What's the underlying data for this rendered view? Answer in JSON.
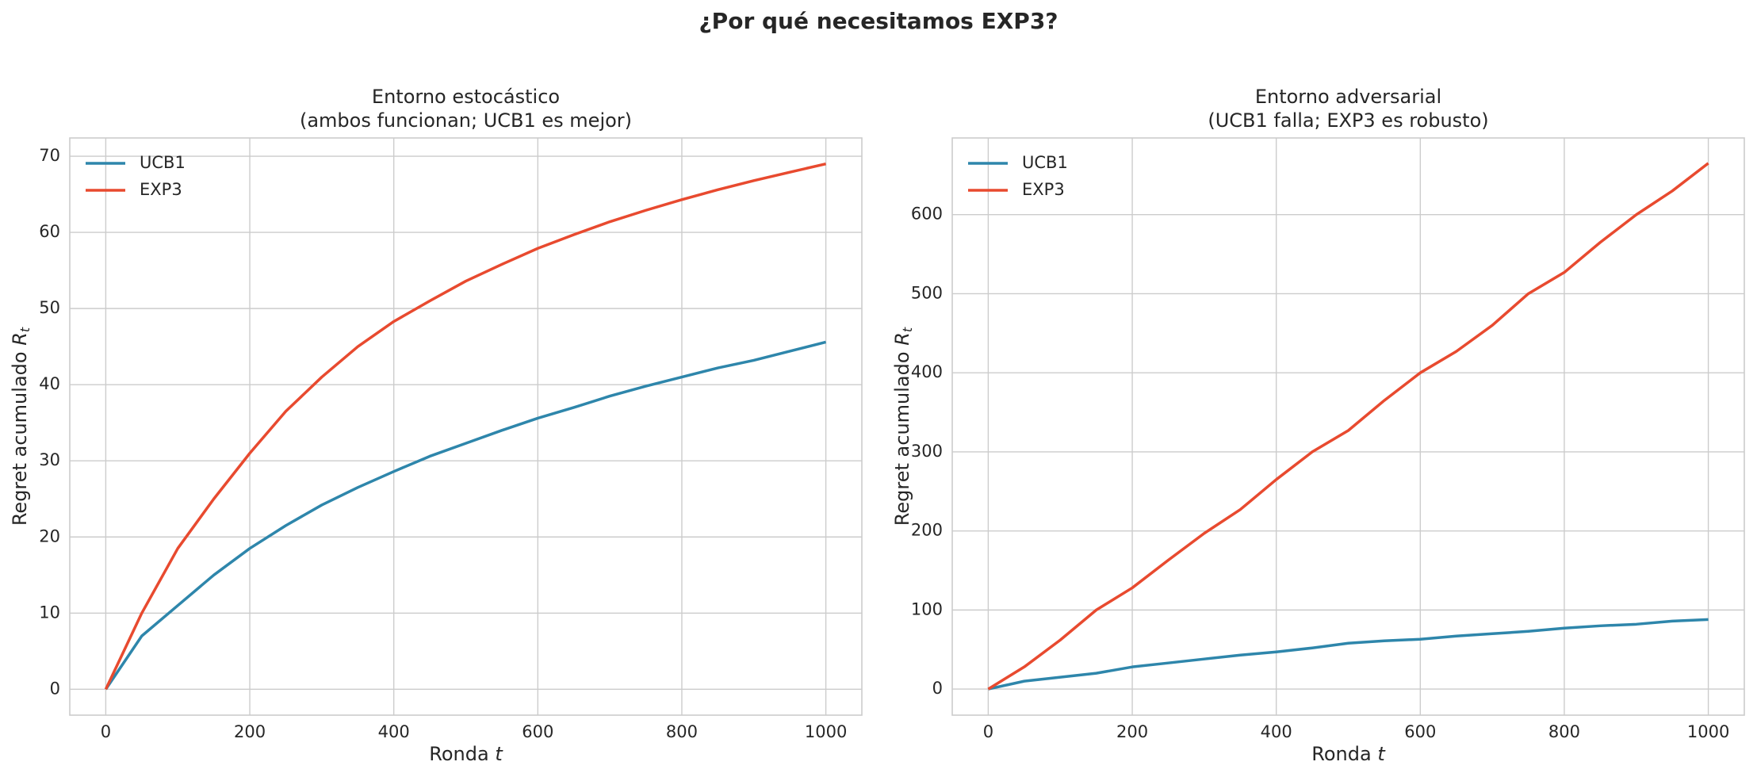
{
  "title": "¿Por qué necesitamos EXP3?",
  "chart_data": [
    {
      "type": "line",
      "title": [
        "Entorno estocástico",
        "(ambos funcionan; UCB1 es mejor)"
      ],
      "xlabel": "Ronda",
      "xlabel_var": "t",
      "ylabel": "Regret acumulado",
      "ylabel_var": "R",
      "ylabel_sub": "t",
      "x": [
        0,
        50,
        100,
        150,
        200,
        250,
        300,
        350,
        400,
        450,
        500,
        550,
        600,
        650,
        700,
        750,
        800,
        850,
        900,
        950,
        1000
      ],
      "series": [
        {
          "name": "UCB1",
          "color": "#2e86ab",
          "values": [
            0,
            7,
            11,
            15,
            18.5,
            21.5,
            24.2,
            26.5,
            28.6,
            30.6,
            32.3,
            34,
            35.6,
            37,
            38.5,
            39.8,
            41,
            42.2,
            43.2,
            44.4,
            45.6
          ]
        },
        {
          "name": "EXP3",
          "color": "#e84a2f",
          "values": [
            0,
            10,
            18.5,
            25,
            31,
            36.5,
            41,
            45,
            48.3,
            51,
            53.6,
            55.8,
            57.9,
            59.7,
            61.4,
            62.9,
            64.3,
            65.6,
            66.8,
            67.9,
            69
          ]
        }
      ],
      "xlim": [
        -50,
        1050
      ],
      "ylim": [
        -3.4,
        72.4
      ],
      "xticks": [
        0,
        200,
        400,
        600,
        800,
        1000
      ],
      "yticks": [
        0,
        10,
        20,
        30,
        40,
        50,
        60,
        70
      ],
      "grid": true,
      "legend": "upper-left"
    },
    {
      "type": "line",
      "title": [
        "Entorno adversarial",
        "(UCB1 falla; EXP3 es robusto)"
      ],
      "xlabel": "Ronda",
      "xlabel_var": "t",
      "ylabel": "Regret acumulado",
      "ylabel_var": "R",
      "ylabel_sub": "t",
      "x": [
        0,
        50,
        100,
        150,
        200,
        250,
        300,
        350,
        400,
        450,
        500,
        550,
        600,
        650,
        700,
        750,
        800,
        850,
        900,
        950,
        1000
      ],
      "series": [
        {
          "name": "UCB1",
          "color": "#2e86ab",
          "values": [
            0,
            10,
            15,
            20,
            28,
            33,
            38,
            43,
            47,
            52,
            58,
            61,
            63,
            67,
            70,
            73,
            77,
            80,
            82,
            86,
            88
          ]
        },
        {
          "name": "EXP3",
          "color": "#e84a2f",
          "values": [
            0,
            28,
            62,
            100,
            128,
            163,
            197,
            227,
            265,
            300,
            327,
            365,
            400,
            427,
            460,
            500,
            527,
            565,
            600,
            630,
            665
          ]
        }
      ],
      "xlim": [
        -50,
        1050
      ],
      "ylim": [
        -33,
        697
      ],
      "xticks": [
        0,
        200,
        400,
        600,
        800,
        1000
      ],
      "yticks": [
        0,
        100,
        200,
        300,
        400,
        500,
        600
      ],
      "grid": true,
      "legend": "upper-left"
    }
  ]
}
